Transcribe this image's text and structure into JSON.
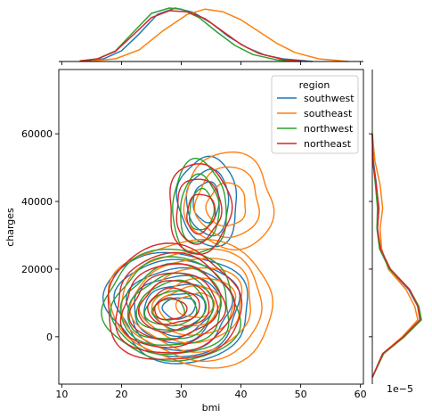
{
  "chart_data": {
    "type": "kde_jointplot",
    "xlabel": "bmi",
    "ylabel": "charges",
    "xlim": [
      9.5,
      60.5
    ],
    "ylim": [
      -14000,
      79000
    ],
    "xticks": [
      10,
      20,
      30,
      40,
      50,
      60
    ],
    "yticks": [
      0,
      20000,
      40000,
      60000
    ],
    "marginal_y_scale_label": "1e−5",
    "legend": {
      "title": "region",
      "placement": "upper right",
      "entries": [
        "southwest",
        "southeast",
        "northwest",
        "northeast"
      ]
    },
    "series": [
      {
        "name": "southwest",
        "color": "#1f77b4",
        "clusters": [
          {
            "cx": 29.5,
            "cy": 9000,
            "rx": 12.5,
            "ry": 15500,
            "levels": 7
          },
          {
            "cx": 34.5,
            "cy": 40000,
            "rx": 5.2,
            "ry": 12500,
            "levels": 3
          }
        ],
        "marginal_x": [
          [
            14,
            0.01
          ],
          [
            17,
            0.05
          ],
          [
            20,
            0.2
          ],
          [
            23,
            0.52
          ],
          [
            26,
            0.88
          ],
          [
            29,
            1.0
          ],
          [
            32,
            0.92
          ],
          [
            35,
            0.72
          ],
          [
            38,
            0.46
          ],
          [
            41,
            0.26
          ],
          [
            44,
            0.12
          ],
          [
            47,
            0.05
          ],
          [
            52,
            0.0
          ]
        ],
        "marginal_y": [
          [
            -12000,
            0.0
          ],
          [
            -5000,
            0.2
          ],
          [
            0,
            0.6
          ],
          [
            5000,
            0.93
          ],
          [
            9000,
            0.88
          ],
          [
            14000,
            0.7
          ],
          [
            20000,
            0.33
          ],
          [
            26000,
            0.15
          ],
          [
            32000,
            0.1
          ],
          [
            38000,
            0.12
          ],
          [
            45000,
            0.08
          ],
          [
            52000,
            0.02
          ],
          [
            60000,
            0.0
          ]
        ]
      },
      {
        "name": "southeast",
        "color": "#ff7f0e",
        "clusters": [
          {
            "cx": 32.0,
            "cy": 10000,
            "rx": 14.5,
            "ry": 17500,
            "levels": 7
          },
          {
            "cx": 38.0,
            "cy": 40000,
            "rx": 7.8,
            "ry": 13500,
            "levels": 3
          }
        ],
        "marginal_x": [
          [
            15,
            0.01
          ],
          [
            19,
            0.05
          ],
          [
            23,
            0.22
          ],
          [
            27,
            0.58
          ],
          [
            31,
            0.88
          ],
          [
            34,
            0.98
          ],
          [
            37,
            0.93
          ],
          [
            40,
            0.78
          ],
          [
            43,
            0.56
          ],
          [
            46,
            0.34
          ],
          [
            49,
            0.17
          ],
          [
            53,
            0.05
          ],
          [
            58,
            0.0
          ]
        ],
        "marginal_y": [
          [
            -12000,
            0.0
          ],
          [
            -5000,
            0.2
          ],
          [
            0,
            0.58
          ],
          [
            5000,
            0.88
          ],
          [
            9000,
            0.82
          ],
          [
            14000,
            0.65
          ],
          [
            20000,
            0.31
          ],
          [
            26000,
            0.18
          ],
          [
            32000,
            0.15
          ],
          [
            38000,
            0.2
          ],
          [
            45000,
            0.15
          ],
          [
            52000,
            0.05
          ],
          [
            60000,
            0.0
          ]
        ]
      },
      {
        "name": "northwest",
        "color": "#2ca02c",
        "clusters": [
          {
            "cx": 28.5,
            "cy": 9000,
            "rx": 12.0,
            "ry": 15500,
            "levels": 7
          },
          {
            "cx": 33.0,
            "cy": 38000,
            "rx": 4.8,
            "ry": 13000,
            "levels": 3
          }
        ],
        "marginal_x": [
          [
            13,
            0.01
          ],
          [
            16,
            0.05
          ],
          [
            19,
            0.2
          ],
          [
            22,
            0.55
          ],
          [
            25,
            0.9
          ],
          [
            28,
            1.0
          ],
          [
            30,
            0.98
          ],
          [
            33,
            0.82
          ],
          [
            36,
            0.55
          ],
          [
            39,
            0.3
          ],
          [
            42,
            0.13
          ],
          [
            46,
            0.03
          ],
          [
            50,
            0.0
          ]
        ],
        "marginal_y": [
          [
            -12000,
            0.0
          ],
          [
            -5000,
            0.22
          ],
          [
            0,
            0.62
          ],
          [
            5000,
            0.95
          ],
          [
            9000,
            0.9
          ],
          [
            14000,
            0.72
          ],
          [
            20000,
            0.33
          ],
          [
            26000,
            0.14
          ],
          [
            32000,
            0.09
          ],
          [
            38000,
            0.1
          ],
          [
            45000,
            0.06
          ],
          [
            52000,
            0.01
          ],
          [
            60000,
            0.0
          ]
        ]
      },
      {
        "name": "northeast",
        "color": "#d62728",
        "clusters": [
          {
            "cx": 28.5,
            "cy": 9500,
            "rx": 12.0,
            "ry": 16000,
            "levels": 7
          },
          {
            "cx": 33.0,
            "cy": 38000,
            "rx": 5.5,
            "ry": 12500,
            "levels": 3
          }
        ],
        "marginal_x": [
          [
            13,
            0.01
          ],
          [
            16,
            0.05
          ],
          [
            19,
            0.19
          ],
          [
            22,
            0.5
          ],
          [
            25,
            0.82
          ],
          [
            28,
            0.95
          ],
          [
            31,
            0.93
          ],
          [
            34,
            0.8
          ],
          [
            37,
            0.56
          ],
          [
            40,
            0.32
          ],
          [
            43,
            0.15
          ],
          [
            47,
            0.04
          ],
          [
            51,
            0.0
          ]
        ],
        "marginal_y": [
          [
            -12000,
            0.0
          ],
          [
            -5000,
            0.2
          ],
          [
            0,
            0.6
          ],
          [
            5000,
            0.92
          ],
          [
            9000,
            0.88
          ],
          [
            14000,
            0.72
          ],
          [
            20000,
            0.35
          ],
          [
            26000,
            0.16
          ],
          [
            32000,
            0.1
          ],
          [
            38000,
            0.13
          ],
          [
            45000,
            0.07
          ],
          [
            52000,
            0.01
          ],
          [
            60000,
            0.0
          ]
        ]
      }
    ]
  }
}
